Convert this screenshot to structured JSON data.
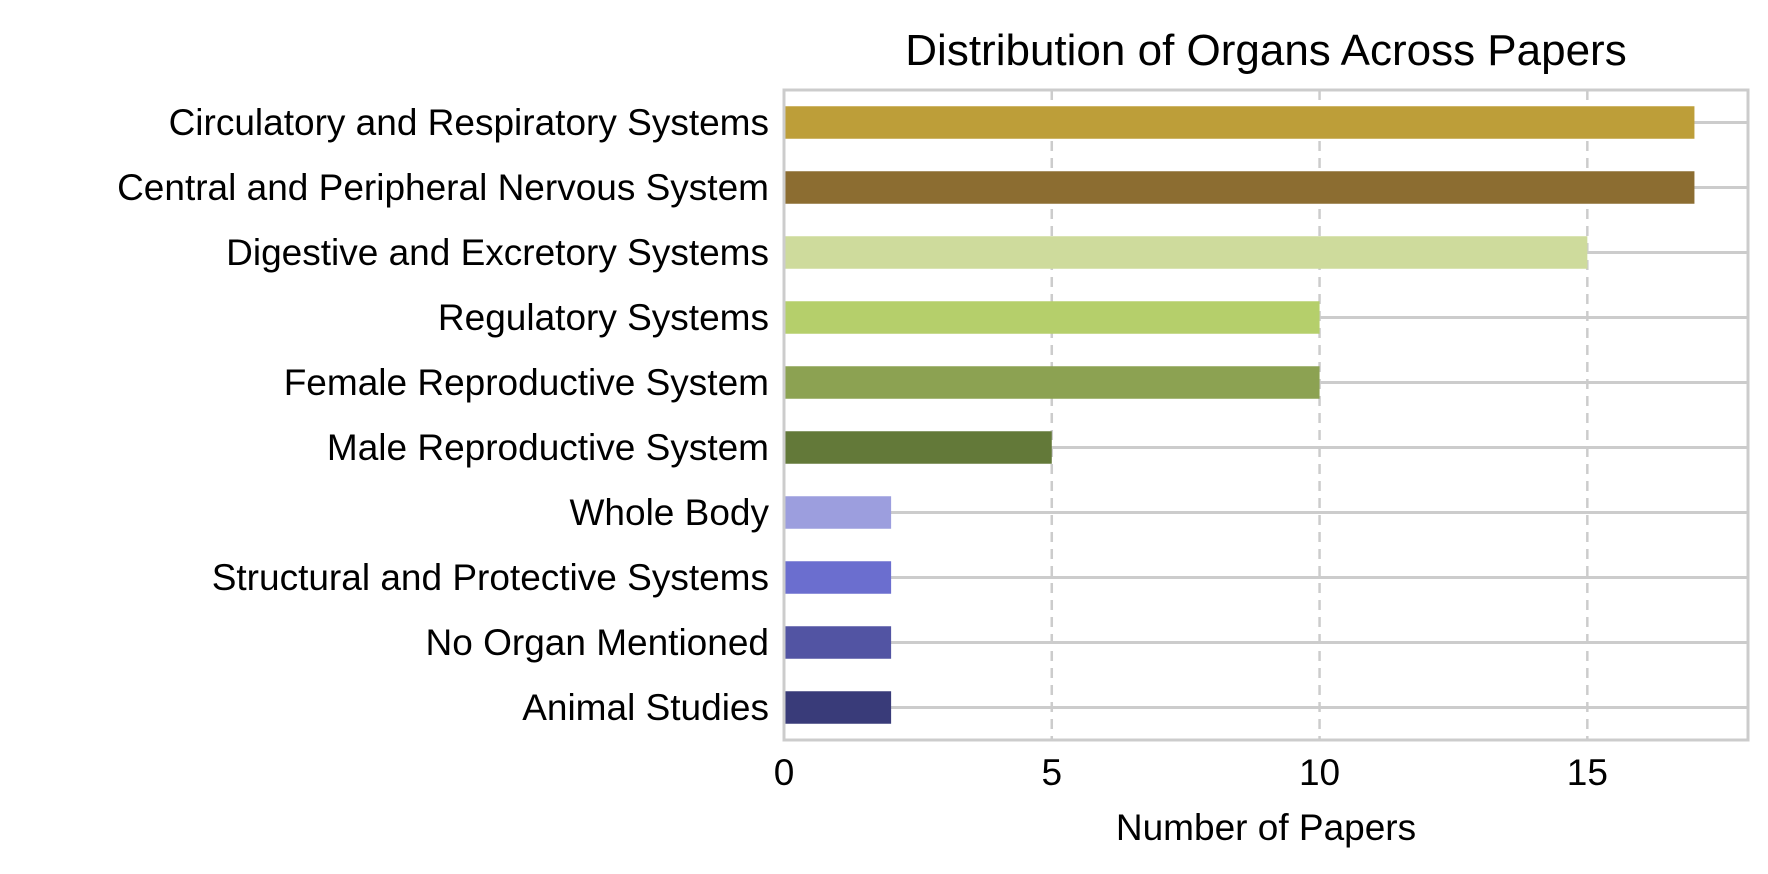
{
  "chart_data": {
    "type": "bar",
    "orientation": "horizontal",
    "title": "Distribution of Organs Across Papers",
    "xlabel": "Number of Papers",
    "ylabel": "",
    "xlim": [
      0,
      18
    ],
    "xticks": [
      0,
      5,
      10,
      15
    ],
    "grid": true,
    "categories": [
      "Circulatory and Respiratory Systems",
      "Central and Peripheral Nervous System",
      "Digestive and Excretory Systems",
      "Regulatory Systems",
      "Female Reproductive System",
      "Male Reproductive System",
      "Whole Body",
      "Structural and Protective Systems",
      "No Organ Mentioned",
      "Animal Studies"
    ],
    "values": [
      17,
      17,
      15,
      10,
      10,
      5,
      2,
      2,
      2,
      2
    ],
    "colors": [
      "#bd9e39",
      "#8c6d31",
      "#cedb9c",
      "#b5cf6b",
      "#8ca252",
      "#637939",
      "#9c9ede",
      "#6b6ecf",
      "#5254a3",
      "#393b79"
    ],
    "frame_color": "#cccccc",
    "grid_color": "#cccccc"
  }
}
